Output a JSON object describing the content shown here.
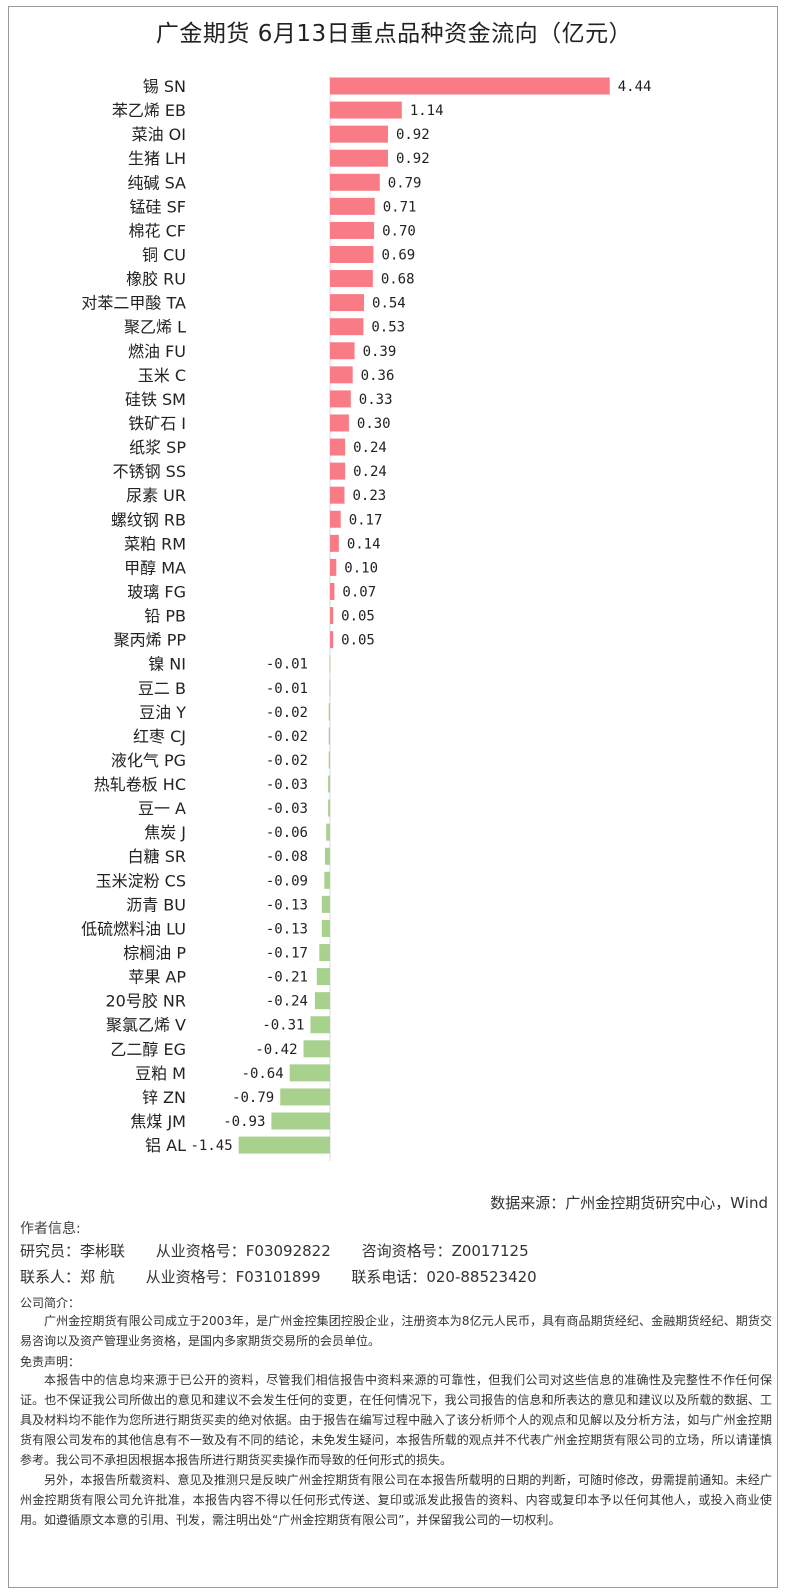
{
  "chart_data": {
    "type": "bar",
    "orientation": "horizontal",
    "title": "广金期货  6月13日重点品种资金流向（亿元）",
    "categories": [
      "锡 SN",
      "苯乙烯 EB",
      "菜油 OI",
      "生猪 LH",
      "纯碱 SA",
      "锰硅 SF",
      "棉花 CF",
      "铜 CU",
      "橡胶 RU",
      "对苯二甲酸 TA",
      "聚乙烯 L",
      "燃油 FU",
      "玉米 C",
      "硅铁 SM",
      "铁矿石 I",
      "纸浆 SP",
      "不锈钢 SS",
      "尿素 UR",
      "螺纹钢 RB",
      "菜粕 RM",
      "甲醇 MA",
      "玻璃 FG",
      "铅 PB",
      "聚丙烯 PP",
      "镍 NI",
      "豆二 B",
      "豆油 Y",
      "红枣 CJ",
      "液化气 PG",
      "热轧卷板 HC",
      "豆一 A",
      "焦炭 J",
      "白糖 SR",
      "玉米淀粉 CS",
      "沥青 BU",
      "低硫燃料油 LU",
      "棕榈油 P",
      "苹果 AP",
      "20号胶 NR",
      "聚氯乙烯 V",
      "乙二醇 EG",
      "豆粕 M",
      "锌 ZN",
      "焦煤 JM",
      "铝 AL"
    ],
    "value_labels": [
      "4.44",
      "1.14",
      "0.92",
      "0.92",
      "0.79",
      "0.71",
      "0.70",
      "0.69",
      "0.68",
      "0.54",
      "0.53",
      "0.39",
      "0.36",
      "0.33",
      "0.30",
      "0.24",
      "0.24",
      "0.23",
      "0.17",
      "0.14",
      "0.10",
      "0.07",
      "0.05",
      "0.05",
      "-0.01",
      "-0.01",
      "-0.02",
      "-0.02",
      "-0.02",
      "-0.03",
      "-0.03",
      "-0.06",
      "-0.08",
      "-0.09",
      "-0.13",
      "-0.13",
      "-0.17",
      "-0.21",
      "-0.24",
      "-0.31",
      "-0.42",
      "-0.64",
      "-0.79",
      "-0.93",
      "-1.45"
    ],
    "values": [
      4.44,
      1.14,
      0.92,
      0.92,
      0.79,
      0.71,
      0.7,
      0.69,
      0.68,
      0.54,
      0.53,
      0.39,
      0.36,
      0.33,
      0.3,
      0.24,
      0.24,
      0.23,
      0.17,
      0.14,
      0.1,
      0.07,
      0.05,
      0.05,
      -0.01,
      -0.01,
      -0.02,
      -0.02,
      -0.02,
      -0.03,
      -0.03,
      -0.06,
      -0.08,
      -0.09,
      -0.13,
      -0.13,
      -0.17,
      -0.21,
      -0.24,
      -0.31,
      -0.42,
      -0.64,
      -0.79,
      -0.93,
      -1.45
    ],
    "colors": {
      "positive": "#f97b86",
      "negative": "#a9d18e"
    },
    "grid": false,
    "legend": "none"
  },
  "source": "数据来源：广州金控期货研究中心，Wind",
  "authors": {
    "heading": "作者信息:",
    "researcher_label": "研究员：李彬联",
    "researcher_license": "从业资格号：F03092822",
    "researcher_consult": "咨询资格号：Z0017125",
    "contact_label": "联系人：郑  航",
    "contact_license": "从业资格号：F03101899",
    "contact_phone": "联系电话：020-88523420"
  },
  "company": {
    "title": "公司简介：",
    "text": "广州金控期货有限公司成立于2003年，是广州金控集团控股企业，注册资本为8亿元人民币，具有商品期货经纪、金融期货经纪、期货交易咨询以及资产管理业务资格，是国内多家期货交易所的会员单位。"
  },
  "disclaimer": {
    "title": "免责声明：",
    "p1": "本报告中的信息均来源于已公开的资料，尽管我们相信报告中资料来源的可靠性，但我们公司对这些信息的准确性及完整性不作任何保证。也不保证我公司所做出的意见和建议不会发生任何的变更，在任何情况下，我公司报告的信息和所表达的意见和建议以及所载的数据、工具及材料均不能作为您所进行期货买卖的绝对依据。由于报告在编写过程中融入了该分析师个人的观点和见解以及分析方法，如与广州金控期货有限公司发布的其他信息有不一致及有不同的结论，未免发生疑问，本报告所载的观点并不代表广州金控期货有限公司的立场，所以请谨慎参考。我公司不承担因根据本报告所进行期货买卖操作而导致的任何形式的损失。",
    "p2": "另外，本报告所载资料、意见及推测只是反映广州金控期货有限公司在本报告所载明的日期的判断，可随时修改，毋需提前通知。未经广州金控期货有限公司允许批准，本报告内容不得以任何形式传送、复印或派发此报告的资料、内容或复印本予以任何其他人，或投入商业使用。如遵循原文本意的引用、刊发，需注明出处“广州金控期货有限公司”，并保留我公司的一切权利。"
  }
}
